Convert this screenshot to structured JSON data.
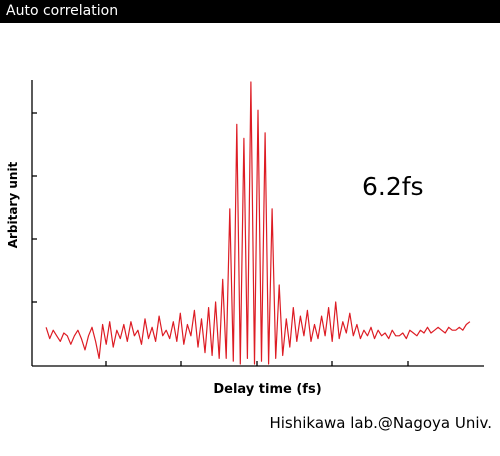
{
  "header": {
    "title": "Auto correlation"
  },
  "footer": {
    "credit": "Hishikawa lab.@Nagoya Univ."
  },
  "chart_data": {
    "type": "line",
    "title": "",
    "xlabel": "Delay time (fs)",
    "ylabel": "Arbitary unit",
    "annotation": "6.2fs",
    "xlim": [
      -32,
      32
    ],
    "ylim": [
      0,
      1
    ],
    "grid": false,
    "legend": "none",
    "series_color": "#dd1c24",
    "series": [
      {
        "name": "",
        "x": [
          -30,
          -29.5,
          -29,
          -28.5,
          -28,
          -27.5,
          -27,
          -26.5,
          -26,
          -25.5,
          -25,
          -24.5,
          -24,
          -23.5,
          -23,
          -22.5,
          -22,
          -21.5,
          -21,
          -20.5,
          -20,
          -19.5,
          -19,
          -18.5,
          -18,
          -17.5,
          -17,
          -16.5,
          -16,
          -15.5,
          -15,
          -14.5,
          -14,
          -13.5,
          -13,
          -12.5,
          -12,
          -11.5,
          -11,
          -10.5,
          -10,
          -9.5,
          -9,
          -8.5,
          -8,
          -7.5,
          -7,
          -6.5,
          -6,
          -5.5,
          -5,
          -4.5,
          -4,
          -3.5,
          -3,
          -2.5,
          -2,
          -1.5,
          -1,
          -0.5,
          0,
          0.5,
          1,
          1.5,
          2,
          2.5,
          3,
          3.5,
          4,
          4.5,
          5,
          5.5,
          6,
          6.5,
          7,
          7.5,
          8,
          8.5,
          9,
          9.5,
          10,
          10.5,
          11,
          11.5,
          12,
          12.5,
          13,
          13.5,
          14,
          14.5,
          15,
          15.5,
          16,
          16.5,
          17,
          17.5,
          18,
          18.5,
          19,
          19.5,
          20,
          20.5,
          21,
          21.5,
          22,
          22.5,
          23,
          23.5,
          24,
          24.5,
          25,
          25.5,
          26,
          26.5,
          27,
          27.5,
          28,
          28.5,
          29,
          29.5,
          30
        ],
        "values": [
          0.13,
          0.09,
          0.12,
          0.1,
          0.08,
          0.11,
          0.1,
          0.07,
          0.1,
          0.12,
          0.09,
          0.05,
          0.1,
          0.13,
          0.08,
          0.02,
          0.14,
          0.07,
          0.15,
          0.06,
          0.12,
          0.09,
          0.14,
          0.08,
          0.15,
          0.1,
          0.12,
          0.07,
          0.16,
          0.09,
          0.13,
          0.08,
          0.17,
          0.1,
          0.12,
          0.09,
          0.15,
          0.08,
          0.18,
          0.07,
          0.14,
          0.1,
          0.19,
          0.06,
          0.16,
          0.04,
          0.2,
          0.03,
          0.22,
          0.02,
          0.3,
          0.02,
          0.55,
          0.01,
          0.85,
          0.0,
          0.8,
          0.02,
          1.0,
          0.0,
          0.9,
          0.01,
          0.82,
          0.0,
          0.55,
          0.02,
          0.28,
          0.03,
          0.16,
          0.06,
          0.2,
          0.08,
          0.17,
          0.1,
          0.19,
          0.08,
          0.14,
          0.09,
          0.17,
          0.1,
          0.2,
          0.08,
          0.22,
          0.09,
          0.15,
          0.11,
          0.18,
          0.1,
          0.14,
          0.09,
          0.12,
          0.1,
          0.13,
          0.09,
          0.12,
          0.1,
          0.11,
          0.09,
          0.12,
          0.1,
          0.1,
          0.11,
          0.09,
          0.12,
          0.11,
          0.1,
          0.12,
          0.11,
          0.13,
          0.11,
          0.12,
          0.13,
          0.12,
          0.11,
          0.13,
          0.12,
          0.12,
          0.13,
          0.12,
          0.14,
          0.15
        ]
      }
    ]
  }
}
